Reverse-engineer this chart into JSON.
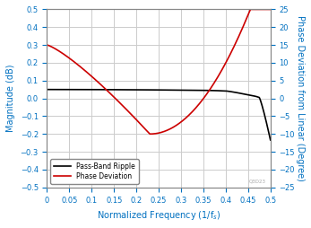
{
  "title": "",
  "xlabel": "Normalized Frequency (1/f_s)",
  "ylabel_left": "Magnitude (dB)",
  "ylabel_right": "Phase Deviation from Linear (Degree)",
  "xlim": [
    0,
    0.5
  ],
  "ylim_left": [
    -0.5,
    0.5
  ],
  "ylim_right": [
    -25,
    25
  ],
  "xticks": [
    0,
    0.05,
    0.1,
    0.15,
    0.2,
    0.25,
    0.3,
    0.35,
    0.4,
    0.45,
    0.5
  ],
  "yticks_left": [
    -0.5,
    -0.4,
    -0.3,
    -0.2,
    -0.1,
    0.0,
    0.1,
    0.2,
    0.3,
    0.4,
    0.5
  ],
  "yticks_right": [
    -25,
    -20,
    -15,
    -10,
    -5,
    0,
    5,
    10,
    15,
    20,
    25
  ],
  "legend_labels": [
    "Pass-Band Ripple",
    "Phase Deviation"
  ],
  "line_color_ripple": "#000000",
  "line_color_phase": "#cc0000",
  "background_color": "#ffffff",
  "grid_color": "#cccccc",
  "axis_label_color": "#0070c0",
  "tick_label_color": "#0070c0",
  "watermark": "Q3D23"
}
